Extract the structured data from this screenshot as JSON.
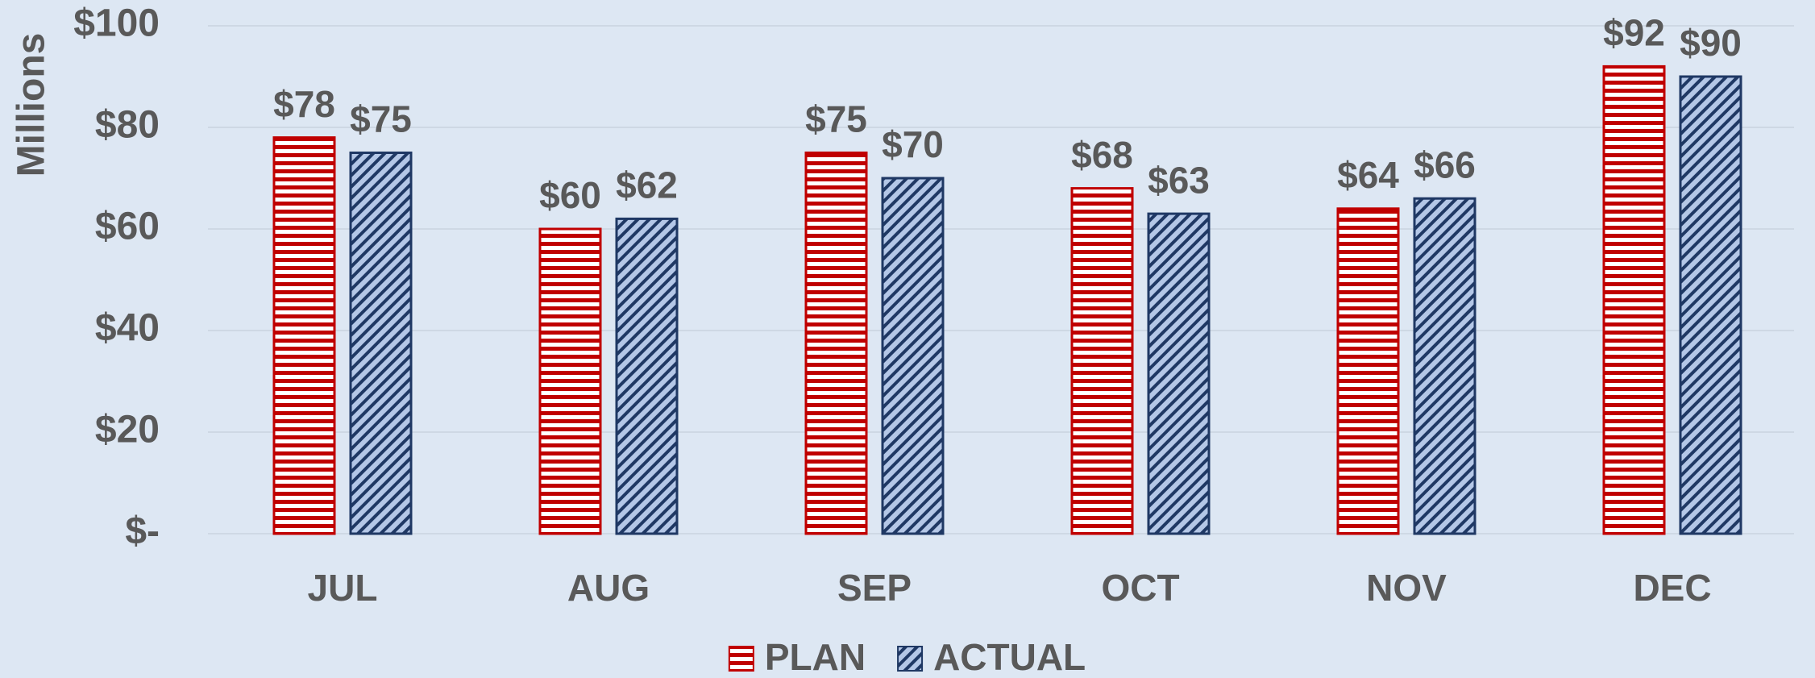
{
  "chart_data": {
    "type": "bar",
    "y_axis_label": "Millions",
    "categories": [
      "JUL",
      "AUG",
      "SEP",
      "OCT",
      "NOV",
      "DEC"
    ],
    "series": [
      {
        "name": "PLAN",
        "color": "#c00000",
        "values": [
          78,
          60,
          75,
          68,
          64,
          92
        ],
        "value_labels": [
          "$78",
          "$60",
          "$75",
          "$68",
          "$64",
          "$92"
        ]
      },
      {
        "name": "ACTUAL",
        "color": "#1f3864",
        "values": [
          75,
          62,
          70,
          63,
          66,
          90
        ],
        "value_labels": [
          "$75",
          "$62",
          "$70",
          "$63",
          "$66",
          "$90"
        ]
      }
    ],
    "ylim": [
      0,
      100
    ],
    "yticks": [
      {
        "value": 0,
        "label": "$-"
      },
      {
        "value": 20,
        "label": "$20"
      },
      {
        "value": 40,
        "label": "$40"
      },
      {
        "value": 60,
        "label": "$60"
      },
      {
        "value": 80,
        "label": "$80"
      },
      {
        "value": 100,
        "label": "$100"
      }
    ],
    "grid": true,
    "legend": "bottom"
  }
}
